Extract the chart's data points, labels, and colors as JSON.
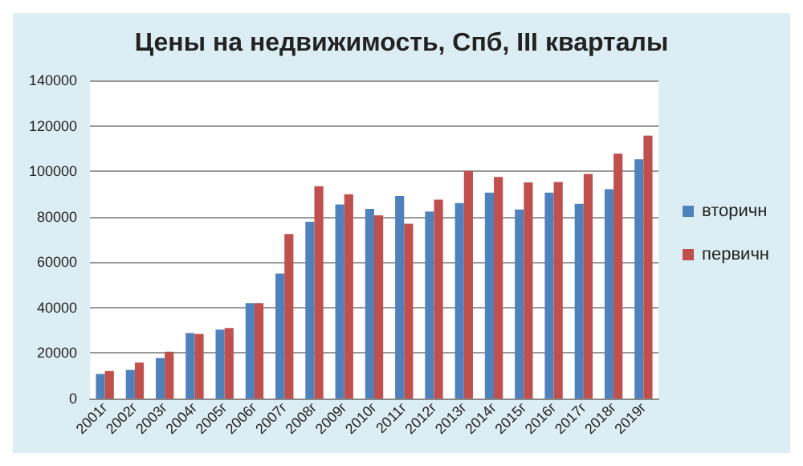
{
  "chart_data": {
    "type": "bar",
    "title": "Цены на недвижимость, Спб, III кварталы",
    "categories": [
      "2001г",
      "2002г",
      "2003г",
      "2004г",
      "2005г",
      "2006г",
      "2007г",
      "2008г",
      "2009г",
      "2010г",
      "2011г",
      "2012г",
      "2013г",
      "2014г",
      "2015г",
      "2016г",
      "2017г",
      "2018г",
      "2019г"
    ],
    "series": [
      {
        "name": "вторичн",
        "color": "#4f81bd",
        "values": [
          10800,
          12600,
          17800,
          28800,
          30300,
          42000,
          55000,
          77800,
          85400,
          83400,
          89100,
          82300,
          86000,
          90600,
          83200,
          90600,
          85600,
          92100,
          105300
        ]
      },
      {
        "name": "первичн",
        "color": "#c0504d",
        "values": [
          12100,
          15800,
          20600,
          28400,
          31000,
          42000,
          72400,
          93400,
          89900,
          80600,
          76900,
          87500,
          100100,
          97500,
          95100,
          95300,
          98800,
          107700,
          115700
        ]
      }
    ],
    "ylim": [
      0,
      140000
    ],
    "yticks": [
      0,
      20000,
      40000,
      60000,
      80000,
      100000,
      120000,
      140000
    ],
    "grid": "y",
    "legend": "right"
  }
}
